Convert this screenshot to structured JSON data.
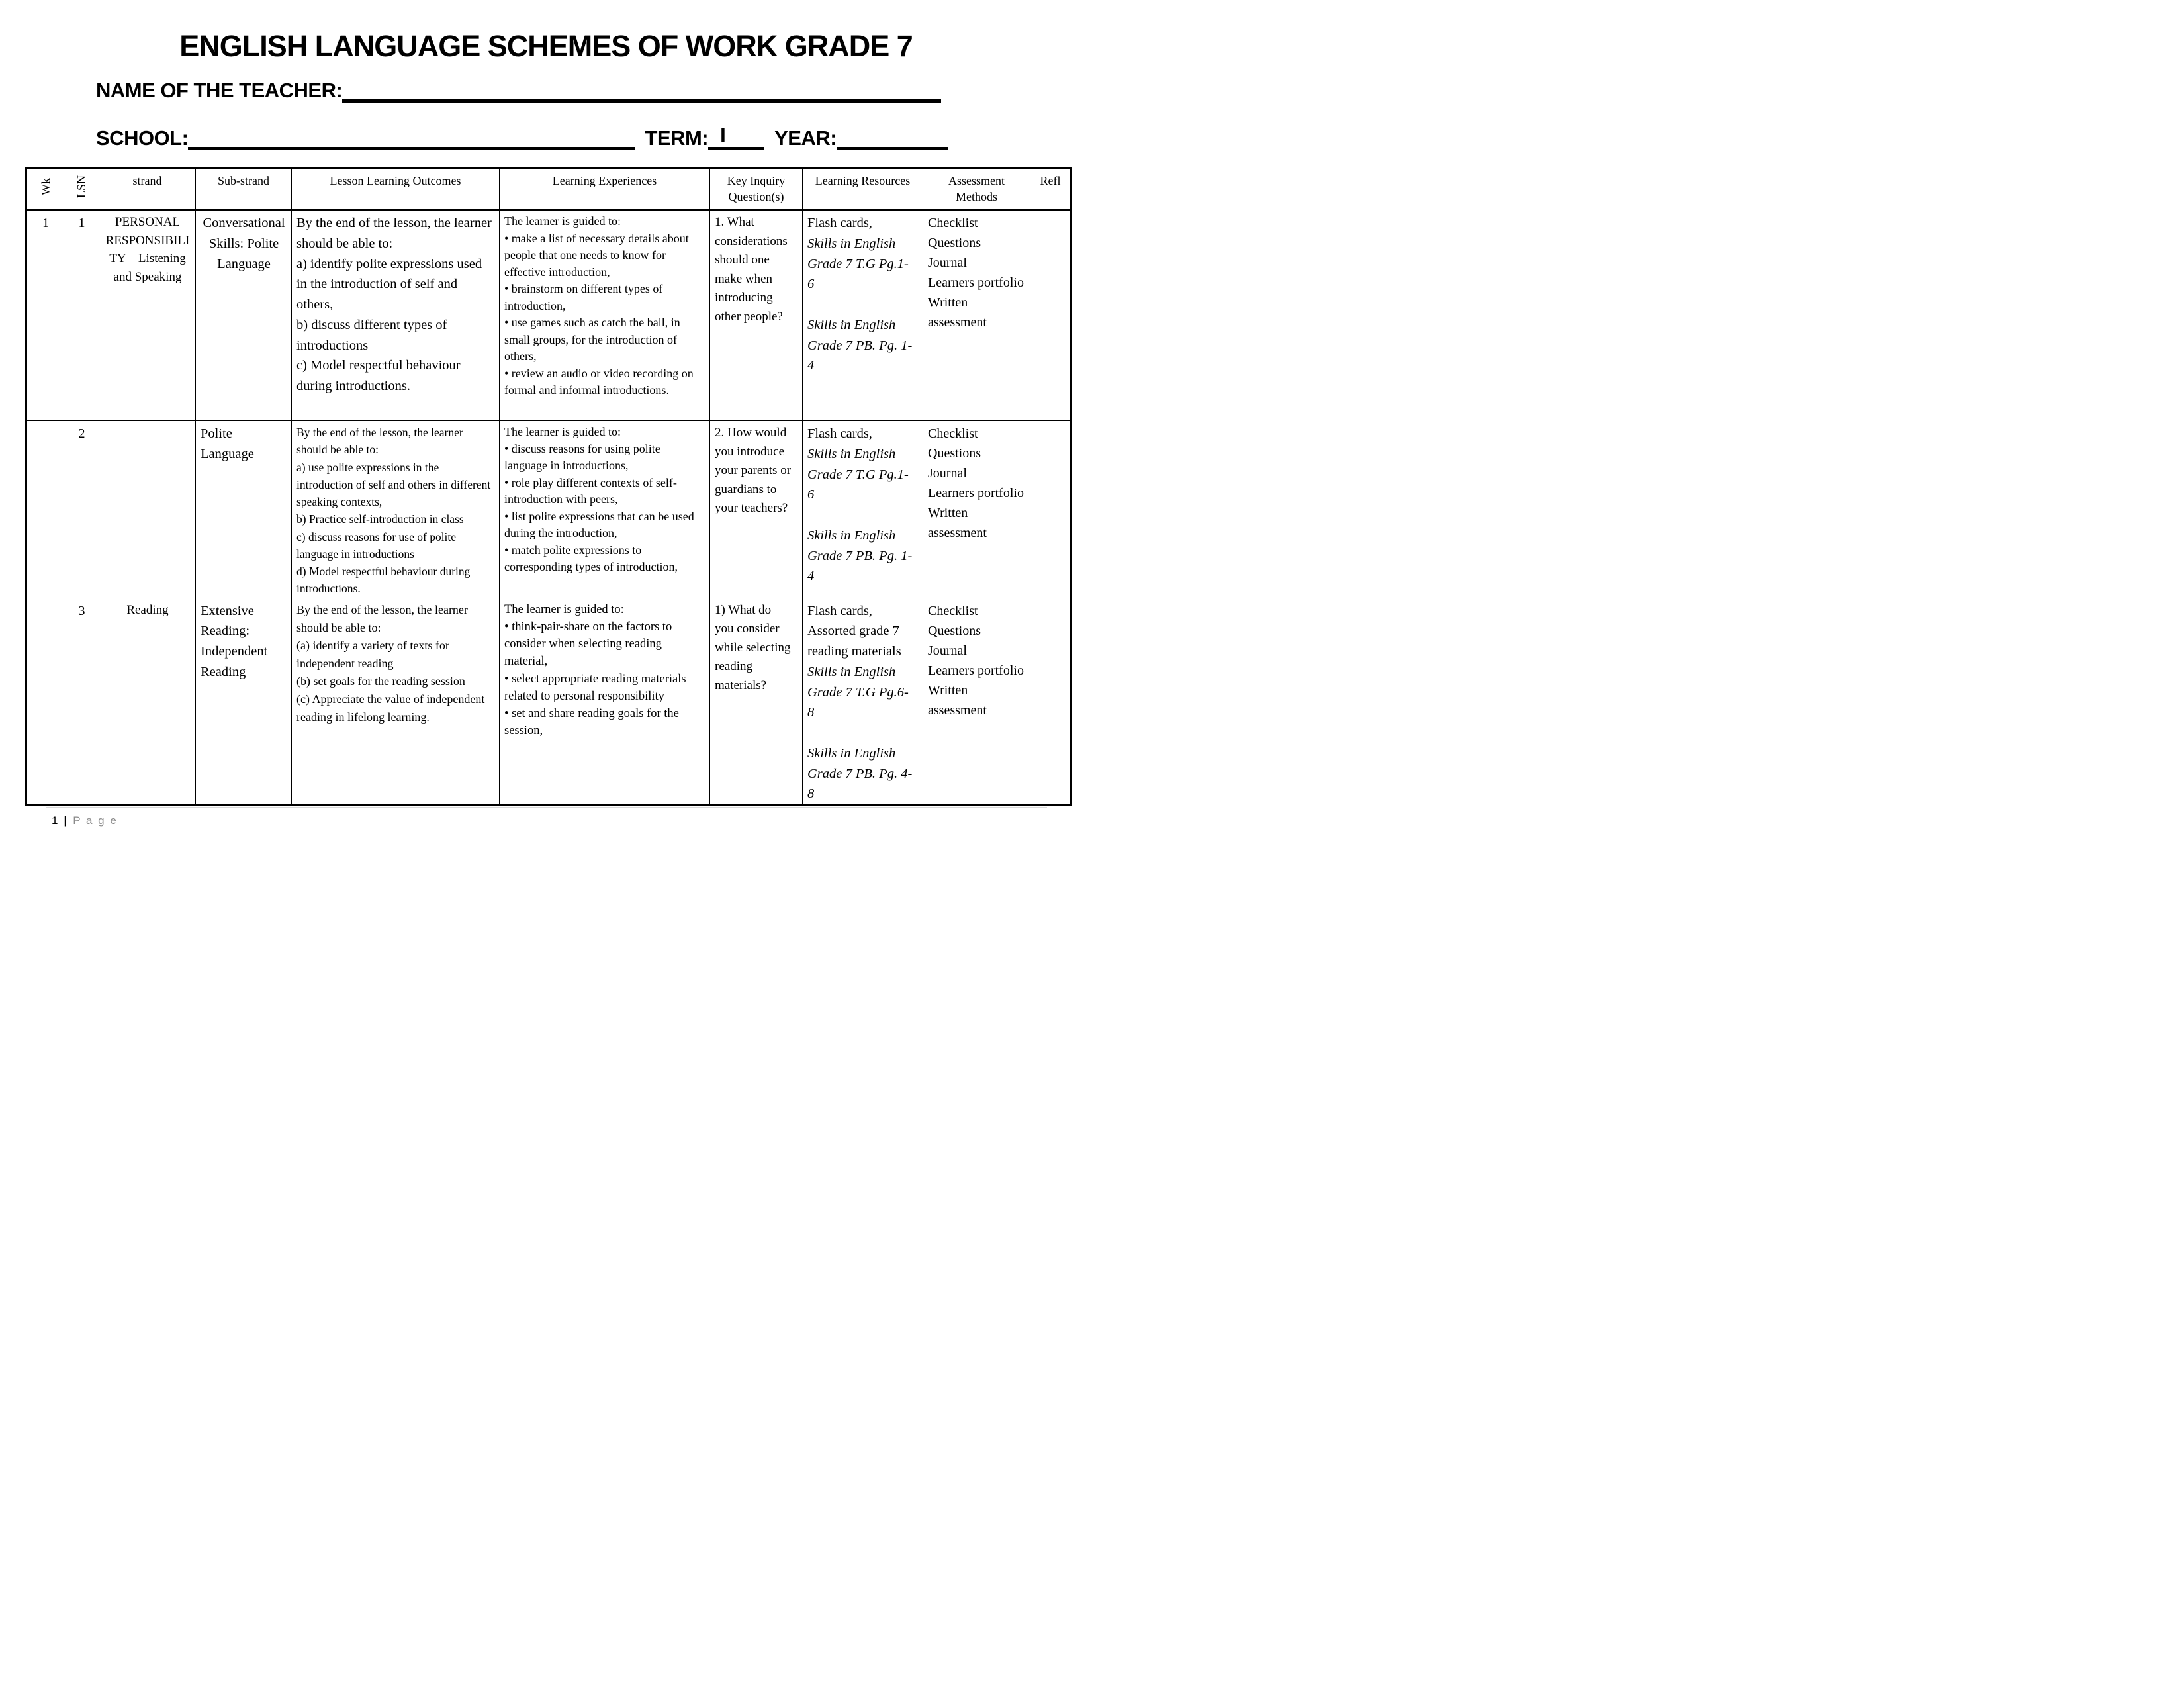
{
  "colors": {
    "text": "#000000",
    "footer_text_gray": "#8a8a8a",
    "footer_rule_gray": "#d9d9d9"
  },
  "document": {
    "title": "ENGLISH LANGUAGE SCHEMES OF WORK GRADE 7",
    "teacher_field": {
      "label": "NAME OF THE TEACHER:"
    },
    "school_field": {
      "label": "SCHOOL:"
    },
    "term_field": {
      "label": "TERM:",
      "value": "I"
    },
    "year_field": {
      "label": "YEAR:"
    },
    "footer": {
      "page_number": "1",
      "separator": "|",
      "page_word": "P a g e"
    }
  },
  "table": {
    "headers": {
      "wk": "Wk",
      "lsn": "LSN",
      "strand": "strand",
      "sub_strand": "Sub-strand",
      "outcomes": "Lesson Learning Outcomes",
      "experiences": "Learning Experiences",
      "key_inquiry": "Key Inquiry Question(s)",
      "resources": "Learning Resources",
      "assessment": "Assessment Methods",
      "refl": "Refl"
    },
    "rows": [
      {
        "wk": "1",
        "lsn": "1",
        "strand": "PERSONAL RESPONSIBILITY – Listening and Speaking",
        "sub_strand": "Conversational Skills: Polite Language",
        "outcomes": [
          "By the end of the lesson, the learner should be able to:",
          "a) identify polite expressions used in the introduction of self and others,",
          "b) discuss different types of introductions",
          "c) Model respectful behaviour during introductions."
        ],
        "experiences": [
          "The learner is guided to:",
          "• make a list of necessary details about people that one needs to know for effective introduction,",
          "• brainstorm on different types of introduction,",
          "• use games such as catch the ball, in small groups, for the introduction of others,",
          "• review an audio or video recording on formal and informal introductions."
        ],
        "key_inquiry": "1. What considerations should one make when introducing other people?",
        "resources": [
          {
            "text": "Flash cards,",
            "italic": false
          },
          {
            "text": "Skills in English Grade 7 T.G Pg.1-6",
            "italic": true
          },
          {
            "text": "",
            "italic": false
          },
          {
            "text": "Skills in English Grade 7 PB. Pg. 1-4",
            "italic": true
          }
        ],
        "assessment": [
          "Checklist",
          "Questions",
          "Journal",
          "Learners portfolio",
          "Written assessment"
        ],
        "refl": ""
      },
      {
        "wk": "",
        "lsn": "2",
        "strand": "",
        "sub_strand": "Polite Language",
        "outcomes": [
          "By the end of the lesson, the learner should be able to:",
          "a) use polite expressions in the introduction of self and others in different speaking contexts,",
          "b) Practice self-introduction in class",
          "c) discuss reasons for use of polite language in introductions",
          "d) Model respectful behaviour during introductions."
        ],
        "experiences": [
          "The learner is guided to:",
          "• discuss reasons for using polite language in introductions,",
          "• role play different contexts of self-introduction with peers,",
          "• list polite expressions that can be used during the introduction,",
          "• match polite expressions to corresponding types of introduction,"
        ],
        "key_inquiry": "2. How would you introduce your parents or guardians to your teachers?",
        "resources": [
          {
            "text": "Flash cards,",
            "italic": false
          },
          {
            "text": "Skills in English Grade 7 T.G Pg.1-6",
            "italic": true
          },
          {
            "text": "",
            "italic": false
          },
          {
            "text": "Skills in English Grade 7 PB. Pg. 1-4",
            "italic": true
          }
        ],
        "assessment": [
          "Checklist",
          "Questions",
          "Journal",
          "Learners portfolio",
          "Written assessment"
        ],
        "refl": ""
      },
      {
        "wk": "",
        "lsn": "3",
        "strand": "Reading",
        "sub_strand": "Extensive Reading: Independent Reading",
        "outcomes": [
          "By the end of the lesson, the learner should be able to:",
          "(a) identify a variety of texts for independent reading",
          "(b) set goals for the reading session",
          "(c) Appreciate the value of independent reading in lifelong learning."
        ],
        "experiences": [
          "The learner is guided to:",
          "• think-pair-share on the factors to consider when selecting reading material,",
          "• select appropriate reading materials related to personal responsibility",
          "• set and share reading goals for the session,"
        ],
        "key_inquiry": "1) What do you consider while selecting reading materials?",
        "resources": [
          {
            "text": "Flash cards,",
            "italic": false
          },
          {
            "text": "Assorted grade 7 reading materials",
            "italic": false
          },
          {
            "text": "Skills in English Grade 7 T.G Pg.6-8",
            "italic": true
          },
          {
            "text": "",
            "italic": false
          },
          {
            "text": "Skills in English Grade 7 PB. Pg. 4-8",
            "italic": true
          }
        ],
        "assessment": [
          "Checklist",
          "Questions",
          "Journal",
          "Learners portfolio",
          "Written assessment"
        ],
        "refl": ""
      }
    ]
  }
}
